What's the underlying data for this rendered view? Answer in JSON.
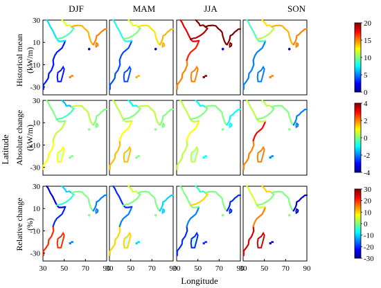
{
  "chart_data": {
    "type": "heatmap",
    "columns": [
      "DJF",
      "MAM",
      "JJA",
      "SON"
    ],
    "xlabel": "Longitude",
    "ylabel": "Latitude",
    "xlim": [
      30,
      90
    ],
    "ylim": [
      -37,
      30
    ],
    "x_ticks": [
      30,
      50,
      70,
      90
    ],
    "y_ticks": [
      30,
      10,
      -10,
      -30
    ],
    "y_ticks_shown": [
      "30",
      "10",
      "-10",
      "-30"
    ],
    "colormap": "jet",
    "grid": false,
    "rows": [
      {
        "label_line1": "Historical mean",
        "label_line2": "(kW/m)",
        "cbar_min": 0,
        "cbar_max": 20,
        "cbar_ticks": [
          20,
          15,
          10,
          5,
          0
        ],
        "cbar_tick_labels": [
          "20",
          "15",
          "10",
          "5",
          "0"
        ],
        "coast_value": [
          [
            3,
            3,
            7,
            9,
            12,
            14,
            15
          ],
          [
            4,
            4,
            8,
            10,
            12,
            13,
            14
          ],
          [
            15,
            17,
            18,
            19,
            20,
            20,
            20
          ],
          [
            5,
            5,
            9,
            11,
            13,
            14,
            15
          ]
        ],
        "land_value": [
          1,
          1,
          2,
          1
        ]
      },
      {
        "label_line1": "Absolute change",
        "label_line2": "(kW/m)",
        "cbar_min": -4,
        "cbar_max": 4,
        "cbar_ticks": [
          4,
          2,
          0,
          -2,
          -4
        ],
        "cbar_tick_labels": [
          "4",
          "2",
          "0",
          "-2",
          "-4"
        ],
        "coast_value": [
          [
            1,
            0.5,
            0,
            -0.5,
            -1.5,
            0.5,
            0
          ],
          [
            1.5,
            1,
            0.5,
            0,
            -1,
            0.5,
            0
          ],
          [
            0.5,
            1,
            0.5,
            0,
            -1,
            0,
            -1
          ],
          [
            2,
            3,
            0.5,
            0,
            0.5,
            0,
            -2
          ]
        ],
        "land_value": [
          0,
          0,
          0,
          0
        ]
      },
      {
        "label_line1": "Relative change",
        "label_line2": "(%)",
        "cbar_min": -30,
        "cbar_max": 30,
        "cbar_ticks": [
          30,
          20,
          10,
          0,
          -10,
          -20,
          -30
        ],
        "cbar_tick_labels": [
          "30",
          "20",
          "10",
          "0",
          "-10",
          "-20",
          "-30"
        ],
        "coast_value": [
          [
            20,
            -20,
            -25,
            -5,
            -10,
            0,
            -15
          ],
          [
            10,
            -15,
            -20,
            0,
            5,
            0,
            -10
          ],
          [
            -20,
            -15,
            0,
            10,
            -5,
            0,
            -20
          ],
          [
            25,
            15,
            5,
            0,
            10,
            0,
            -25
          ]
        ],
        "land_value": [
          0,
          0,
          0,
          0
        ]
      }
    ]
  }
}
